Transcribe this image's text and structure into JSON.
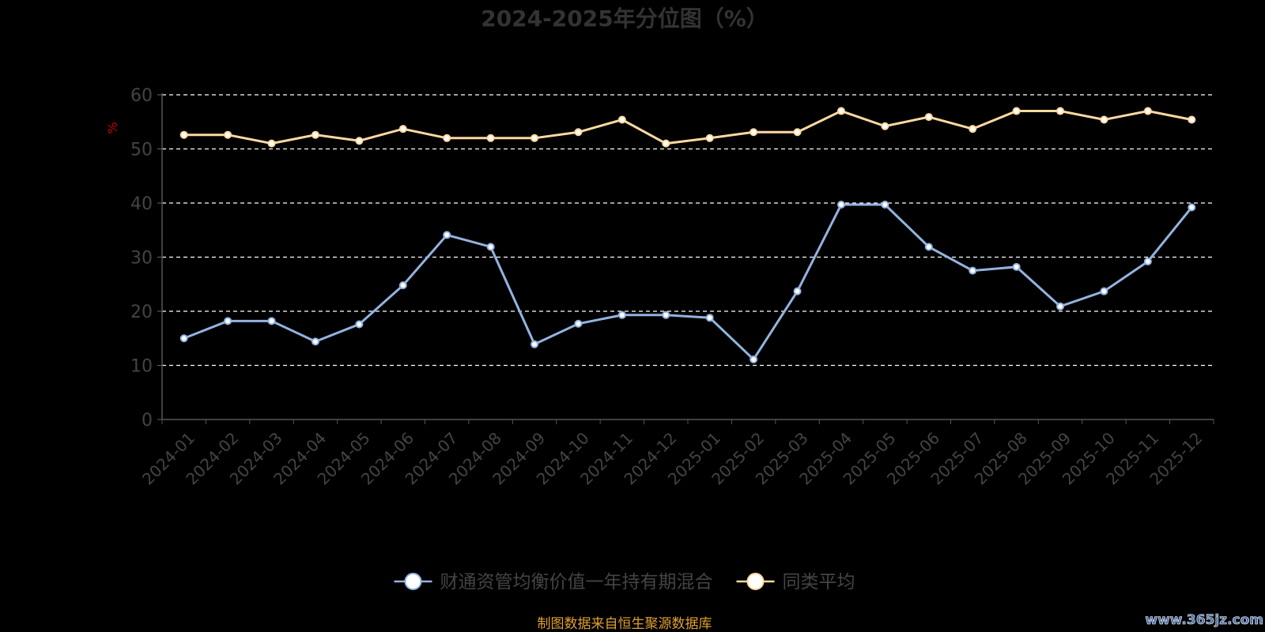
{
  "chart_data": {
    "type": "line",
    "title": "2024-2025年分位图（%）",
    "ylabel": "%",
    "ylim": [
      0,
      60
    ],
    "yticks": [
      0,
      10,
      20,
      30,
      40,
      50,
      60
    ],
    "grid": true,
    "legend_position": "bottom-center",
    "categories": [
      "2024-01",
      "2024-02",
      "2024-03",
      "2024-04",
      "2024-05",
      "2024-06",
      "2024-07",
      "2024-08",
      "2024-09",
      "2024-10",
      "2024-11",
      "2024-12",
      "2025-01",
      "2025-02",
      "2025-03",
      "2025-04",
      "2025-05",
      "2025-06",
      "2025-07",
      "2025-08",
      "2025-09",
      "2025-10",
      "2025-11",
      "2025-12"
    ],
    "series": [
      {
        "name": "财通资管均衡价值一年持有期混合",
        "color": "#93b3e0",
        "values": [
          15.0,
          18.2,
          18.2,
          14.4,
          17.6,
          24.8,
          34.1,
          31.9,
          13.9,
          17.7,
          19.3,
          19.3,
          18.8,
          11.1,
          23.7,
          39.7,
          39.7,
          31.9,
          27.5,
          28.2,
          20.9,
          23.7,
          29.2,
          39.2
        ]
      },
      {
        "name": "同类平均",
        "color": "#ffd9a0",
        "values": [
          52.6,
          52.6,
          51.0,
          52.6,
          51.5,
          53.7,
          52.0,
          52.0,
          52.0,
          53.1,
          55.4,
          51.0,
          52.0,
          53.1,
          53.1,
          57.0,
          54.2,
          55.9,
          53.7,
          57.0,
          57.0,
          55.4,
          57.0,
          55.4
        ]
      }
    ]
  },
  "footer": {
    "source": "制图数据来自恒生聚源数据库"
  },
  "watermark": "www.365jz.com",
  "colors": {
    "title": "#333333",
    "axis": "#666666",
    "grid": "#ffffff",
    "ylabel": "#cc0000",
    "source": "#e0a030"
  }
}
